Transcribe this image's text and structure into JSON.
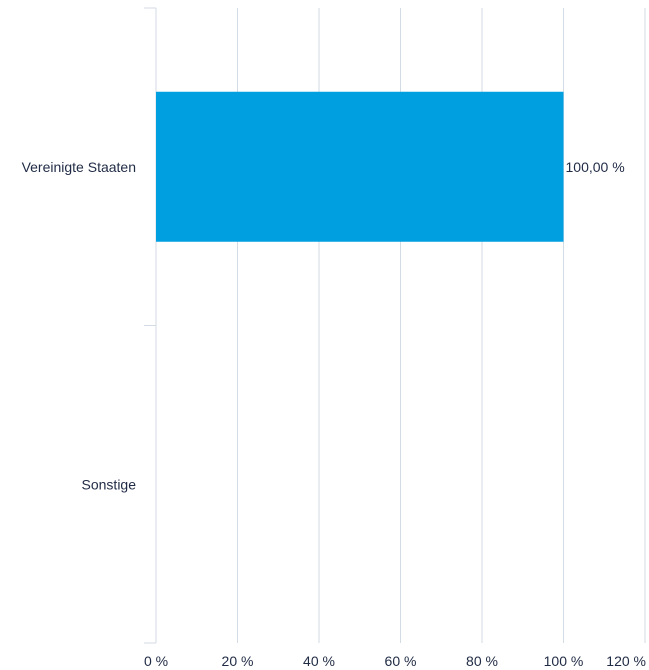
{
  "chart_data": {
    "type": "bar",
    "orientation": "horizontal",
    "categories": [
      "Vereinigte Staaten",
      "Sonstige"
    ],
    "values": [
      100,
      0
    ],
    "data_labels": [
      "100,00 %",
      ""
    ],
    "xlim": [
      0,
      120
    ],
    "x_ticks": [
      0,
      20,
      40,
      60,
      80,
      100,
      120
    ],
    "x_tick_labels": [
      "0 %",
      "20 %",
      "40 %",
      "60 %",
      "80 %",
      "100 %",
      "120 %"
    ],
    "grid": true,
    "legend": "none",
    "title": "",
    "xlabel": "",
    "ylabel": "",
    "colors": {
      "bar": "#009fe0",
      "grid": "#d3dbe5",
      "text": "#1f2a44"
    }
  }
}
